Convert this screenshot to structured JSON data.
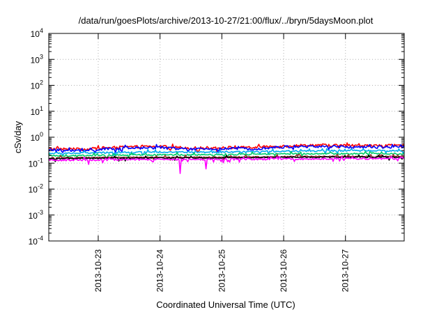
{
  "chart_data": {
    "type": "line",
    "title": "/data/run/goesPlots/archive/2013-10-27/21:00/flux/../bryn/5daysMoon.plot",
    "xlabel": "Coordinated Universal Time (UTC)",
    "ylabel": "cSv/day",
    "yscale": "log",
    "ylim_exponent": [
      -4,
      4
    ],
    "y_tick_base": "10",
    "y_tick_exponents": [
      "-4",
      "-3",
      "-2",
      "-1",
      "0",
      "1",
      "2",
      "3",
      "4"
    ],
    "xlim": [
      22.2,
      27.95
    ],
    "x_ticks": [
      {
        "value": 23,
        "label": "2013-10-23"
      },
      {
        "value": 24,
        "label": "2013-10-24"
      },
      {
        "value": 25,
        "label": "2013-10-25"
      },
      {
        "value": 26,
        "label": "2013-10-26"
      },
      {
        "value": 27,
        "label": "2013-10-27"
      }
    ],
    "grid": true,
    "series": [
      {
        "color": "#ff0000",
        "base": [
          [
            22.2,
            0.36
          ],
          [
            22.8,
            0.34
          ],
          [
            23.0,
            0.38
          ],
          [
            23.5,
            0.42
          ],
          [
            24.0,
            0.44
          ],
          [
            24.5,
            0.38
          ],
          [
            25.0,
            0.4
          ],
          [
            25.5,
            0.4
          ],
          [
            26.0,
            0.46
          ],
          [
            26.5,
            0.5
          ],
          [
            27.0,
            0.48
          ],
          [
            27.5,
            0.47
          ],
          [
            27.95,
            0.48
          ]
        ],
        "noise": 0.12,
        "dips": []
      },
      {
        "color": "#0000ff",
        "base": [
          [
            22.2,
            0.32
          ],
          [
            22.8,
            0.3
          ],
          [
            23.0,
            0.34
          ],
          [
            23.5,
            0.38
          ],
          [
            24.0,
            0.4
          ],
          [
            24.5,
            0.34
          ],
          [
            25.0,
            0.36
          ],
          [
            25.5,
            0.36
          ],
          [
            26.0,
            0.42
          ],
          [
            26.5,
            0.44
          ],
          [
            27.0,
            0.42
          ],
          [
            27.5,
            0.42
          ],
          [
            27.95,
            0.43
          ]
        ],
        "noise": 0.12,
        "dips": []
      },
      {
        "color": "#00aaee",
        "base": [
          [
            22.2,
            0.24
          ],
          [
            23.0,
            0.25
          ],
          [
            24.0,
            0.27
          ],
          [
            25.0,
            0.26
          ],
          [
            26.0,
            0.29
          ],
          [
            27.0,
            0.3
          ],
          [
            27.95,
            0.3
          ]
        ],
        "noise": 0.07,
        "dips": []
      },
      {
        "color": "#00cc66",
        "base": [
          [
            22.2,
            0.19
          ],
          [
            23.0,
            0.2
          ],
          [
            24.0,
            0.21
          ],
          [
            25.0,
            0.21
          ],
          [
            26.0,
            0.23
          ],
          [
            27.0,
            0.23
          ],
          [
            27.95,
            0.23
          ]
        ],
        "noise": 0.06,
        "dips": []
      },
      {
        "color": "#993333",
        "base": [
          [
            22.2,
            0.16
          ],
          [
            23.0,
            0.165
          ],
          [
            24.0,
            0.17
          ],
          [
            25.0,
            0.17
          ],
          [
            26.0,
            0.18
          ],
          [
            27.0,
            0.18
          ],
          [
            27.95,
            0.18
          ]
        ],
        "noise": 0.05,
        "dips": []
      },
      {
        "color": "#000000",
        "base": [
          [
            22.2,
            0.15
          ],
          [
            23.0,
            0.155
          ],
          [
            24.0,
            0.16
          ],
          [
            25.0,
            0.16
          ],
          [
            26.0,
            0.17
          ],
          [
            27.0,
            0.17
          ],
          [
            27.95,
            0.17
          ]
        ],
        "noise": 0.05,
        "dips": []
      },
      {
        "color": "#ff00ff",
        "base": [
          [
            22.2,
            0.13
          ],
          [
            23.0,
            0.135
          ],
          [
            24.0,
            0.14
          ],
          [
            25.0,
            0.14
          ],
          [
            26.0,
            0.145
          ],
          [
            27.0,
            0.15
          ],
          [
            27.95,
            0.15
          ]
        ],
        "noise": 0.08,
        "dips": [
          [
            22.85,
            0.09
          ],
          [
            24.33,
            0.04
          ],
          [
            24.75,
            0.06
          ],
          [
            26.9,
            0.12
          ]
        ]
      }
    ]
  }
}
